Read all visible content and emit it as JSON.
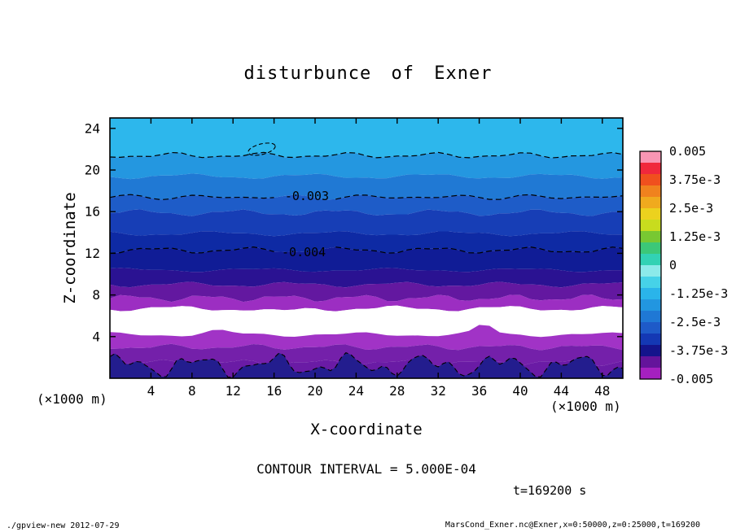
{
  "title": "disturbunce of Exner",
  "footer": {
    "left": "./gpview-new  2012-07-29",
    "right": "MarsCond_Exner.nc@Exner,x=0:50000,z=0:25000,t=169200"
  },
  "chart_data": {
    "type": "filled_contour",
    "title": "disturbunce of Exner",
    "xlabel": "X-coordinate",
    "ylabel": "Z-coordinate",
    "x_unit": "(×1000 m)",
    "y_unit": "(×1000 m)",
    "xlim": [
      0,
      50
    ],
    "ylim": [
      0,
      25
    ],
    "x_ticks": [
      4,
      8,
      12,
      16,
      20,
      24,
      28,
      32,
      36,
      40,
      44,
      48
    ],
    "y_ticks": [
      4,
      8,
      12,
      16,
      20,
      24
    ],
    "contour_interval_text": "CONTOUR INTERVAL = 5.000E-04",
    "time_text": "t=169200 s",
    "bands": [
      {
        "z_top": 25.0,
        "z_bottom": 21.4,
        "color": "#2db7ec"
      },
      {
        "z_top": 21.4,
        "z_bottom": 19.4,
        "color": "#2497e0"
      },
      {
        "z_top": 19.4,
        "z_bottom": 17.4,
        "color": "#2079d4"
      },
      {
        "z_top": 17.4,
        "z_bottom": 15.9,
        "color": "#1e5cc8"
      },
      {
        "z_top": 15.9,
        "z_bottom": 13.9,
        "color": "#173eb6"
      },
      {
        "z_top": 13.9,
        "z_bottom": 12.3,
        "color": "#0e2aa4"
      },
      {
        "z_top": 12.3,
        "z_bottom": 10.4,
        "color": "#101c96"
      },
      {
        "z_top": 10.4,
        "z_bottom": 9.0,
        "color": "#2a1292"
      },
      {
        "z_top": 9.0,
        "z_bottom": 7.7,
        "color": "#6318a0"
      },
      {
        "z_top": 7.7,
        "z_bottom": 6.7,
        "color": "#9c2ec2"
      },
      {
        "z_top": 6.7,
        "z_bottom": 4.2,
        "color": "#ffffff"
      },
      {
        "z_top": 4.2,
        "z_bottom": 3.0,
        "color": "#a133c6"
      },
      {
        "z_top": 3.0,
        "z_bottom": 1.5,
        "color": "#7420aa"
      },
      {
        "z_top": 1.5,
        "z_bottom": 0.0,
        "color": "#6a1ba5"
      }
    ],
    "bottom_region": {
      "color": "#231d8e",
      "base_z": 1.25
    },
    "contour_lines": [
      {
        "z": 21.4,
        "label": null
      },
      {
        "z": 17.4,
        "label": "-0.003",
        "label_x": 19.2
      },
      {
        "z": 12.3,
        "label": "-0.004",
        "label_x": 18.9
      }
    ],
    "contour_loop": {
      "x": 14.8,
      "z": 22.0
    },
    "colorbar": {
      "labels": [
        "0.005",
        "3.75e-3",
        "2.5e-3",
        "1.25e-3",
        "0",
        "-1.25e-3",
        "-2.5e-3",
        "-3.75e-3",
        "-0.005"
      ],
      "colors": [
        "#f896b4",
        "#f0283c",
        "#f0501e",
        "#f0821e",
        "#f0aa1e",
        "#ecd21e",
        "#c8dc1e",
        "#78c832",
        "#3cc878",
        "#32d2b4",
        "#8ceaea",
        "#46d2e8",
        "#2ab4ea",
        "#2296e0",
        "#1f78d5",
        "#1e5ac8",
        "#1438b4",
        "#14148c",
        "#64149b",
        "#a520c0"
      ]
    }
  }
}
